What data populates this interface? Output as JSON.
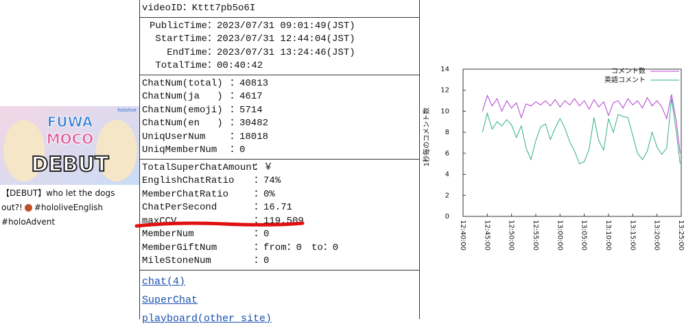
{
  "video": {
    "thumbnail_texts": [
      "FUWA",
      "MOCO",
      "DEBUT",
      "hololive"
    ],
    "title": "【DEBUT】who let the dogs out?!",
    "tags": "#hololiveEnglish #holoAdvent"
  },
  "info": {
    "video_id": "videoID：Kttt7pb5o6I",
    "times": [
      [
        "PublicTime",
        "：2023/07/31 09:01:49(JST)"
      ],
      [
        "StartTime",
        "：2023/07/31 12:44:04(JST)"
      ],
      [
        "EndTime",
        "：2023/07/31 13:24:46(JST)"
      ],
      [
        "TotalTime",
        "：00:40:42"
      ]
    ],
    "chat": [
      [
        "ChatNum(total)",
        "：40813"
      ],
      [
        "ChatNum(ja   )",
        "：4617"
      ],
      [
        "ChatNum(emoji)",
        "：5714"
      ],
      [
        "ChatNum(en   )",
        "：30482"
      ],
      [
        "UniqUserNum",
        "：18018"
      ],
      [
        "UniqMemberNum",
        "：0"
      ]
    ],
    "stats": [
      [
        "TotalSuperChatAmount",
        "：￥"
      ],
      [
        "EnglishChatRatio",
        "：74%"
      ],
      [
        "MemberChatRatio",
        "：0%"
      ],
      [
        "ChatPerSecond",
        "：16.71"
      ],
      [
        "maxCCV",
        "：119,509"
      ],
      [
        "MemberNum",
        "：0"
      ],
      [
        "MemberGiftNum",
        "：from：0　to：0"
      ],
      [
        "MileStoneNum",
        "：0"
      ]
    ],
    "links": [
      "chat(4)",
      "SuperChat",
      "playboard(other site)"
    ]
  },
  "chart_data": {
    "type": "line",
    "y_label": "1秒毎のコメント数",
    "grid": false,
    "legend": "top-right",
    "x": [
      "12:44:00",
      "12:45:00",
      "12:46:00",
      "12:47:00",
      "12:48:00",
      "12:49:00",
      "12:50:00",
      "12:51:00",
      "12:52:00",
      "12:53:00",
      "12:54:00",
      "12:55:00",
      "12:56:00",
      "12:57:00",
      "12:58:00",
      "12:59:00",
      "13:00:00",
      "13:01:00",
      "13:02:00",
      "13:03:00",
      "13:04:00",
      "13:05:00",
      "13:06:00",
      "13:07:00",
      "13:08:00",
      "13:09:00",
      "13:10:00",
      "13:11:00",
      "13:12:00",
      "13:13:00",
      "13:14:00",
      "13:15:00",
      "13:16:00",
      "13:17:00",
      "13:18:00",
      "13:19:00",
      "13:20:00",
      "13:21:00",
      "13:22:00",
      "13:23:00",
      "13:24:00",
      "13:24:46"
    ],
    "series": [
      {
        "name": "コメント数",
        "color": "#b23ed0",
        "values": [
          10.0,
          11.5,
          10.5,
          11.2,
          10.0,
          11.0,
          10.3,
          10.8,
          9.4,
          10.7,
          10.5,
          10.9,
          10.6,
          11.0,
          10.5,
          11.1,
          10.4,
          11.0,
          10.6,
          11.2,
          10.5,
          11.0,
          10.2,
          11.1,
          10.4,
          10.9,
          9.6,
          10.8,
          11.0,
          10.3,
          11.2,
          10.6,
          11.0,
          10.3,
          11.3,
          10.5,
          11.0,
          10.4,
          9.3,
          11.6,
          9.0,
          6.0
        ]
      },
      {
        "name": "英語コメント",
        "color": "#2fae8a",
        "values": [
          8.0,
          9.8,
          8.3,
          9.0,
          8.6,
          9.2,
          8.7,
          7.5,
          8.6,
          6.5,
          5.4,
          7.2,
          8.5,
          8.8,
          7.3,
          8.4,
          9.3,
          8.4,
          7.1,
          6.2,
          5.0,
          5.2,
          6.4,
          9.4,
          7.2,
          6.3,
          9.3,
          8.0,
          9.7,
          9.5,
          9.4,
          7.7,
          6.0,
          5.4,
          6.2,
          8.0,
          6.6,
          5.9,
          6.5,
          11.2,
          8.0,
          5.0
        ]
      }
    ],
    "xlim": [
      "12:40:00",
      "13:25:00"
    ],
    "xticks": [
      "12:40:00",
      "12:45:00",
      "12:50:00",
      "12:55:00",
      "13:00:00",
      "13:05:00",
      "13:10:00",
      "13:15:00",
      "13:20:00",
      "13:25:00"
    ],
    "ylim": [
      0,
      14
    ],
    "yticks": [
      0,
      2,
      4,
      6,
      8,
      10,
      12,
      14
    ]
  }
}
